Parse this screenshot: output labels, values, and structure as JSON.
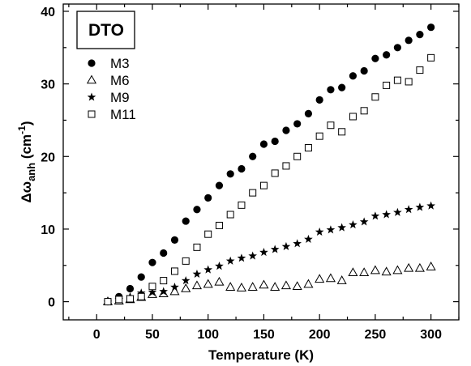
{
  "chart_data": {
    "type": "scatter",
    "title": "",
    "label_box": "DTO",
    "xlabel": "Temperature (K)",
    "ylabel": {
      "main": "Δω",
      "sub": "anh",
      "unit_open": " (cm",
      "sup": "-1",
      "unit_close": ")"
    },
    "xlim": [
      -30,
      325
    ],
    "ylim": [
      -2.5,
      41
    ],
    "xticks": [
      0,
      50,
      100,
      150,
      200,
      250,
      300
    ],
    "yticks": [
      0,
      10,
      20,
      30,
      40
    ],
    "x_minor_step": 25,
    "y_minor_step": 5,
    "grid": false,
    "legend_position": "top-left",
    "series": [
      {
        "name": "M3",
        "marker": "filled-circle",
        "color": "#000000",
        "x": [
          10,
          20,
          30,
          40,
          50,
          60,
          70,
          80,
          90,
          100,
          110,
          120,
          130,
          140,
          150,
          160,
          170,
          180,
          190,
          200,
          210,
          220,
          230,
          240,
          250,
          260,
          270,
          280,
          290,
          300
        ],
        "y": [
          0,
          0.7,
          1.8,
          3.4,
          5.4,
          6.7,
          8.5,
          11.1,
          12.7,
          14.3,
          16.0,
          17.6,
          18.3,
          20.0,
          21.7,
          22.1,
          23.6,
          24.5,
          25.9,
          27.8,
          29.2,
          29.5,
          31.1,
          31.8,
          33.5,
          34.0,
          35.0,
          36.0,
          36.8,
          37.8
        ]
      },
      {
        "name": "M6",
        "marker": "open-triangle",
        "color": "#000000",
        "x": [
          10,
          20,
          30,
          40,
          50,
          60,
          70,
          80,
          90,
          100,
          110,
          120,
          130,
          140,
          150,
          160,
          170,
          180,
          190,
          200,
          210,
          220,
          230,
          240,
          250,
          260,
          270,
          280,
          290,
          300
        ],
        "y": [
          0,
          0.1,
          0.3,
          0.6,
          1.0,
          1.1,
          1.4,
          1.8,
          2.2,
          2.4,
          2.7,
          2.0,
          1.9,
          2.0,
          2.3,
          2.0,
          2.2,
          2.1,
          2.4,
          3.1,
          3.2,
          2.9,
          4.0,
          4.0,
          4.3,
          4.1,
          4.3,
          4.6,
          4.6,
          4.8
        ]
      },
      {
        "name": "M9",
        "marker": "filled-star",
        "color": "#000000",
        "x": [
          10,
          20,
          30,
          40,
          50,
          60,
          70,
          80,
          90,
          100,
          110,
          120,
          130,
          140,
          150,
          160,
          170,
          180,
          190,
          200,
          210,
          220,
          230,
          240,
          250,
          260,
          270,
          280,
          290,
          300
        ],
        "y": [
          0,
          0.3,
          0.7,
          1.2,
          1.3,
          1.4,
          2.0,
          2.9,
          3.8,
          4.4,
          4.9,
          5.6,
          6.0,
          6.3,
          6.8,
          7.2,
          7.6,
          8.0,
          8.6,
          9.6,
          9.9,
          10.2,
          10.6,
          11.0,
          11.8,
          12.0,
          12.3,
          12.7,
          13.0,
          13.2
        ]
      },
      {
        "name": "M11",
        "marker": "open-square",
        "color": "#000000",
        "x": [
          10,
          20,
          30,
          40,
          50,
          60,
          70,
          80,
          90,
          100,
          110,
          120,
          130,
          140,
          150,
          160,
          170,
          180,
          190,
          200,
          210,
          220,
          230,
          240,
          250,
          260,
          270,
          280,
          290,
          300
        ],
        "y": [
          0,
          0.3,
          0.4,
          0.7,
          2.1,
          2.9,
          4.2,
          5.6,
          7.5,
          9.3,
          10.5,
          12.0,
          13.3,
          15.0,
          16.0,
          17.7,
          18.7,
          20.0,
          21.2,
          22.8,
          24.3,
          23.4,
          25.5,
          26.3,
          28.2,
          29.8,
          30.5,
          30.3,
          31.9,
          33.6
        ]
      }
    ]
  }
}
